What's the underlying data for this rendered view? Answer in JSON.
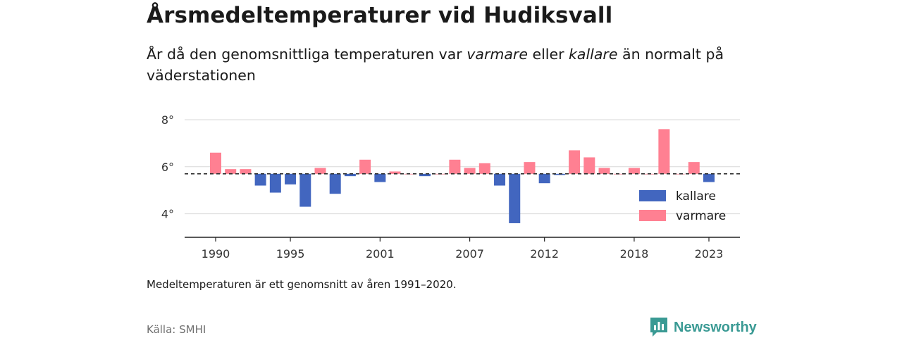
{
  "header": {
    "title": "Årsmedeltemperaturer vid Hudiksvall",
    "subtitle_pre": "År då den genomsnittliga temperaturen var ",
    "subtitle_warm": "varmare",
    "subtitle_mid": " eller ",
    "subtitle_cold": "kallare",
    "subtitle_post": " än normalt på väderstationen"
  },
  "footer": {
    "note": "Medeltemperaturen är ett genomsnitt av åren 1991–2020.",
    "source": "Källa: SMHI",
    "brand": "Newsworthy",
    "brand_icon": "newsworthy-logo-icon"
  },
  "colors": {
    "kallare": "#4266bf",
    "varmare": "#ff8092",
    "baseline": "#333333",
    "grid": "#d8d8d8",
    "brand": "#3a9a94"
  },
  "chart_data": {
    "type": "bar",
    "baseline": 5.7,
    "ylim": [
      3,
      8.3
    ],
    "yticks": [
      4,
      6,
      8
    ],
    "ytick_labels": [
      "4°",
      "6°",
      "8°"
    ],
    "xticks": [
      1990,
      1995,
      2001,
      2007,
      2012,
      2018,
      2023
    ],
    "xtick_labels": [
      "1990",
      "1995",
      "2001",
      "2007",
      "2012",
      "2018",
      "2023"
    ],
    "legend": [
      {
        "key": "kallare",
        "label": "kallare"
      },
      {
        "key": "varmare",
        "label": "varmare"
      }
    ],
    "legend_position": "bottom-right",
    "x": [
      1990,
      1991,
      1992,
      1993,
      1994,
      1995,
      1996,
      1997,
      1998,
      1999,
      2000,
      2001,
      2002,
      2003,
      2004,
      2005,
      2006,
      2007,
      2008,
      2009,
      2010,
      2011,
      2012,
      2013,
      2014,
      2015,
      2016,
      2017,
      2018,
      2019,
      2020,
      2021,
      2022,
      2023
    ],
    "values": [
      6.6,
      5.9,
      5.9,
      5.2,
      4.9,
      5.25,
      4.3,
      5.95,
      4.85,
      5.6,
      6.3,
      5.35,
      5.8,
      5.7,
      5.6,
      5.7,
      6.3,
      5.95,
      6.15,
      5.2,
      3.6,
      6.2,
      5.3,
      5.65,
      6.7,
      6.4,
      5.95,
      5.7,
      5.95,
      5.7,
      7.6,
      5.7,
      6.2,
      5.35
    ]
  }
}
